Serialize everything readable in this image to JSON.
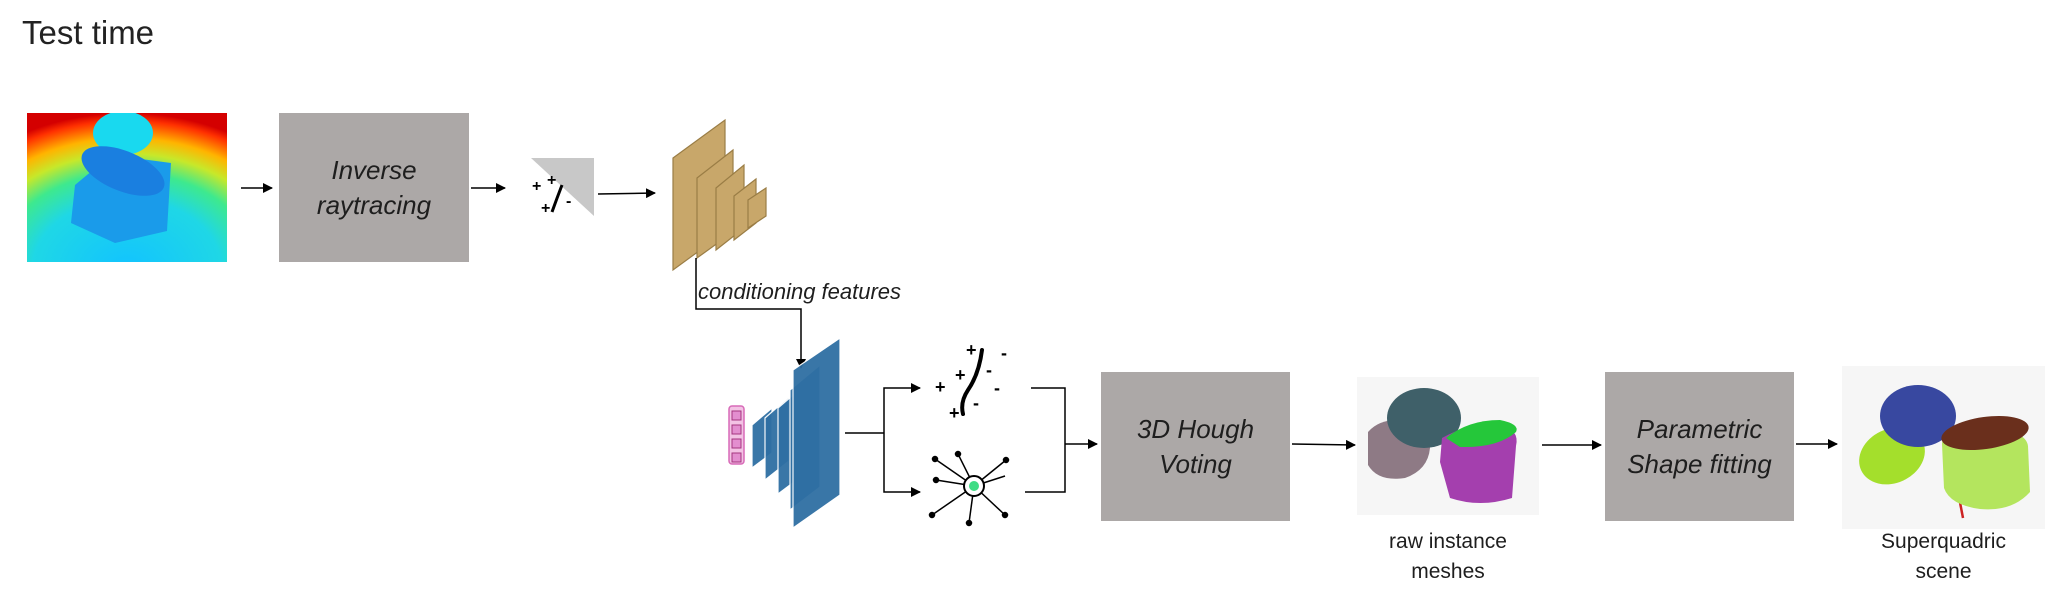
{
  "title": "Test time",
  "boxes": {
    "inverse": [
      "Inverse",
      "raytracing"
    ],
    "hough": [
      "3D Hough",
      "Voting"
    ],
    "parametric": [
      "Parametric",
      "Shape fitting"
    ]
  },
  "labels": {
    "conditioning": "conditioning features",
    "raw": [
      "raw instance",
      "meshes"
    ],
    "superquadric": [
      "Superquadric",
      "scene"
    ]
  },
  "sdf_signs": {
    "small": [
      "+",
      "+",
      "+",
      "-"
    ],
    "large": [
      "+",
      "+",
      "+",
      "+",
      "-",
      "-",
      "-"
    ]
  },
  "colors": {
    "box": "#aca8a7",
    "feature_planes": "#c8a76a",
    "network_planes": "#2f6fa3",
    "input_token": "#e38ecf",
    "vote_center": "#3fdc84"
  }
}
